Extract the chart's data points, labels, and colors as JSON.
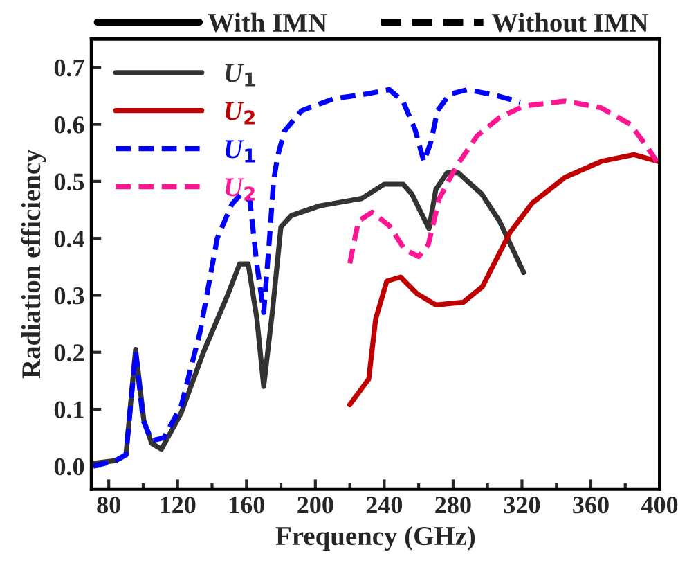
{
  "chart_data": {
    "type": "line",
    "xlabel": "Frequency (GHz)",
    "ylabel": "Radiation efficiency",
    "annotations": [
      "With IMN",
      "Without IMN"
    ],
    "xlim": [
      70,
      400
    ],
    "ylim": [
      -0.04,
      0.75
    ],
    "xticks": [
      80,
      {
        "value": 100,
        "label": null
      },
      120,
      {
        "value": 140,
        "label": null
      },
      160,
      {
        "value": 180,
        "label": null
      },
      200,
      {
        "value": 220,
        "label": null
      },
      240,
      {
        "value": 260,
        "label": null
      },
      280,
      {
        "value": 300,
        "label": null
      },
      320,
      {
        "value": 340,
        "label": null
      },
      360,
      {
        "value": 380,
        "label": null
      },
      400
    ],
    "yticks": [
      {
        "value": 0.0,
        "label": "0.0"
      },
      {
        "value": 0.1,
        "label": "0.1"
      },
      {
        "value": 0.2,
        "label": "0.2"
      },
      {
        "value": 0.3,
        "label": "0.3"
      },
      {
        "value": 0.4,
        "label": "0.4"
      },
      {
        "value": 0.5,
        "label": "0.5"
      },
      {
        "value": 0.6,
        "label": "0.6"
      },
      {
        "value": 0.7,
        "label": "0.7"
      }
    ],
    "grid": false,
    "legend": "top left",
    "marker": "none",
    "series": [
      {
        "name": "U$_{1}$",
        "color": "#333333",
        "line_style": "solid",
        "x": [
          71,
          84,
          90,
          95.6,
          100.4,
          105,
          110.6,
          122,
          135,
          149,
          156,
          161,
          166,
          170,
          175,
          180,
          186,
          202.5,
          227,
          240,
          251,
          256,
          266,
          270,
          276.5,
          283,
          296.6,
          307,
          321
        ],
        "values": [
          0.005,
          0.01,
          0.02,
          0.205,
          0.08,
          0.04,
          0.03,
          0.093,
          0.2,
          0.3,
          0.355,
          0.355,
          0.26,
          0.14,
          0.27,
          0.42,
          0.44,
          0.457,
          0.47,
          0.495,
          0.495,
          0.478,
          0.417,
          0.486,
          0.515,
          0.515,
          0.478,
          0.43,
          0.34
        ]
      },
      {
        "name": "U$_{2}$",
        "color": "#c00000",
        "line_style": "solid",
        "x": [
          220,
          231,
          235,
          241.5,
          249.5,
          259,
          270,
          286,
          297,
          313,
          326,
          345,
          366,
          385,
          399
        ],
        "values": [
          0.108,
          0.153,
          0.258,
          0.325,
          0.332,
          0.303,
          0.283,
          0.288,
          0.315,
          0.41,
          0.462,
          0.507,
          0.535,
          0.547,
          0.535
        ]
      },
      {
        "name": "U$_{1}$",
        "color": "#0000ff",
        "line_style": "dashed",
        "x": [
          71,
          84,
          90,
          95.6,
          100,
          105,
          112,
          122,
          133,
          143,
          151.5,
          157,
          162,
          166,
          170,
          173.5,
          175.7,
          178,
          182,
          192,
          210.6,
          229,
          243,
          251,
          258,
          263,
          267,
          271,
          278,
          288.5,
          304.6,
          319
        ],
        "values": [
          0.0,
          0.01,
          0.02,
          0.2,
          0.08,
          0.045,
          0.05,
          0.105,
          0.235,
          0.4,
          0.46,
          0.478,
          0.466,
          0.355,
          0.27,
          0.405,
          0.5,
          0.543,
          0.588,
          0.624,
          0.645,
          0.653,
          0.661,
          0.64,
          0.59,
          0.535,
          0.568,
          0.624,
          0.653,
          0.661,
          0.651,
          0.639
        ]
      },
      {
        "name": "U$_{2}$",
        "color": "#ff1493",
        "line_style": "dashed",
        "x": [
          220,
          225,
          233,
          243,
          252,
          260,
          265.6,
          272,
          282,
          294,
          307,
          321,
          345,
          366,
          383,
          393,
          399
        ],
        "values": [
          0.356,
          0.43,
          0.446,
          0.422,
          0.38,
          0.368,
          0.389,
          0.47,
          0.527,
          0.58,
          0.612,
          0.632,
          0.641,
          0.629,
          0.6,
          0.559,
          0.532
        ]
      }
    ]
  }
}
